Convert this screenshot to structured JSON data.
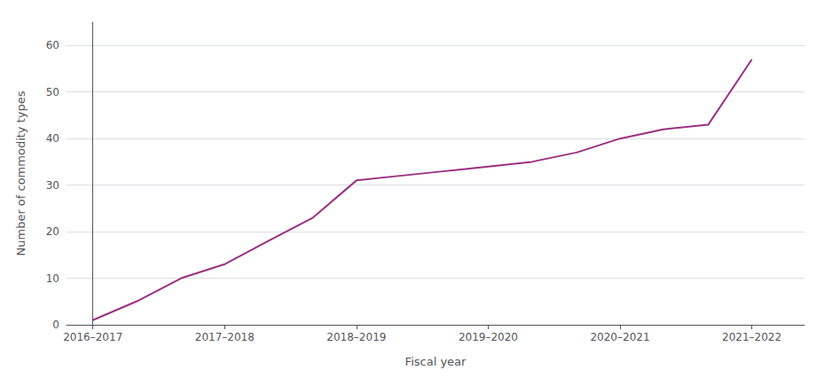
{
  "chart_data": {
    "type": "line",
    "x": [
      0,
      0.33,
      0.67,
      1.0,
      1.33,
      1.67,
      2.0,
      2.33,
      2.67,
      3.0,
      3.33,
      3.67,
      4.0,
      4.33,
      4.67,
      5.0
    ],
    "values": [
      1,
      5,
      10,
      13,
      18,
      23,
      31,
      32,
      33,
      34,
      35,
      37,
      40,
      42,
      43,
      57
    ],
    "color": "#9b3080",
    "xlabel": "Fiscal year",
    "ylabel": "Number of commodity types",
    "xlim": [
      -0.2,
      5.4
    ],
    "xticks": [
      {
        "value": 0,
        "label": "2016–2017"
      },
      {
        "value": 1,
        "label": "2017–2018"
      },
      {
        "value": 2,
        "label": "2018–2019"
      },
      {
        "value": 3,
        "label": "2019–2020"
      },
      {
        "value": 4,
        "label": "2020–2021"
      },
      {
        "value": 5,
        "label": "2021–2022"
      }
    ],
    "ylim": [
      0,
      65
    ],
    "yticks": [
      0,
      10,
      20,
      30,
      40,
      50,
      60
    ],
    "grid": true
  }
}
